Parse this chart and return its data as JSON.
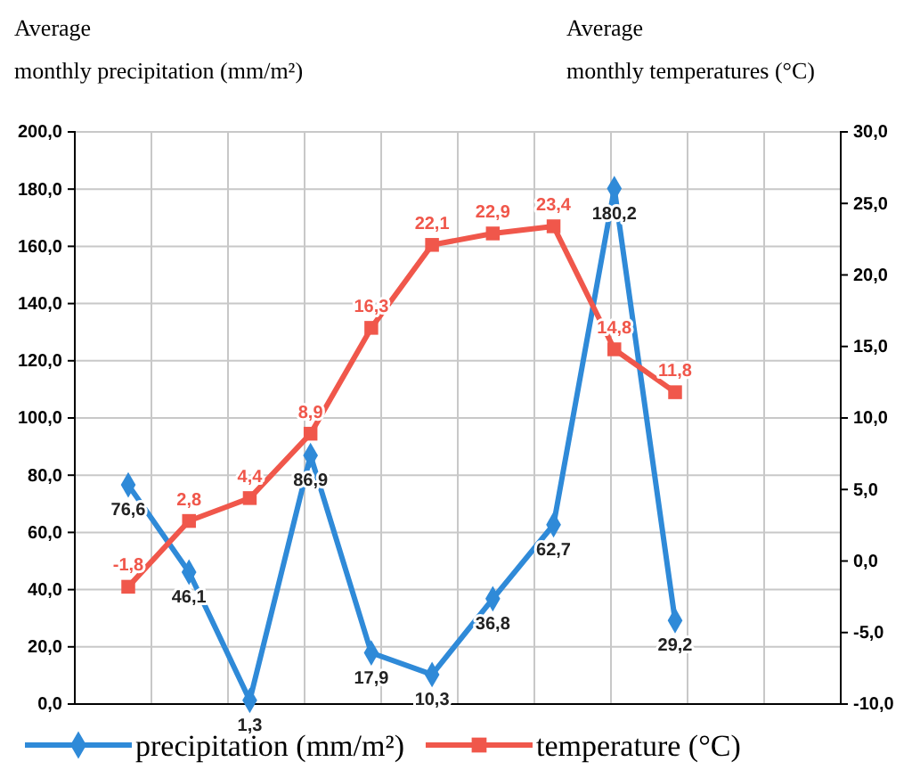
{
  "chart_data": {
    "type": "line",
    "ylabel": "Average\nmonthly precipitation (mm/m²)",
    "y2label": "Average\nmonthly temperatures (°C)",
    "categories": [
      null,
      null,
      null,
      null,
      null,
      null,
      null,
      null,
      null,
      null
    ],
    "series": [
      {
        "name": "precipitation (mm/m²)",
        "color": "#2f8ad8",
        "marker": "diamond",
        "values": [
          76.6,
          46.1,
          1.3,
          86.9,
          17.9,
          10.3,
          36.8,
          62.7,
          180.2,
          29.2
        ],
        "value_labels": [
          "76,6",
          "46,1",
          "1,3",
          "86,9",
          "17,9",
          "10,3",
          "36,8",
          "62,7",
          "180,2",
          "29,2"
        ]
      },
      {
        "name": "temperature (°C)",
        "color": "#f0574b",
        "marker": "square",
        "axis": "y2",
        "values": [
          -1.8,
          2.8,
          4.4,
          8.9,
          16.3,
          22.1,
          22.9,
          23.4,
          14.8,
          11.8
        ],
        "value_labels": [
          "-1,8",
          "2,8",
          "4,4",
          "8,9",
          "16,3",
          "22,1",
          "22,9",
          "23,4",
          "14,8",
          "11,8"
        ]
      }
    ],
    "ylim": [
      0,
      200
    ],
    "yticks": [
      {
        "value": 0,
        "label": "0,0"
      },
      {
        "value": 20,
        "label": "20,0"
      },
      {
        "value": 40,
        "label": "40,0"
      },
      {
        "value": 60,
        "label": "60,0"
      },
      {
        "value": 80,
        "label": "80,0"
      },
      {
        "value": 100,
        "label": "100,0"
      },
      {
        "value": 120,
        "label": "120,0"
      },
      {
        "value": 140,
        "label": "140,0"
      },
      {
        "value": 160,
        "label": "160,0"
      },
      {
        "value": 180,
        "label": "180,0"
      },
      {
        "value": 200,
        "label": "200,0"
      }
    ],
    "y2lim": [
      -10,
      30
    ],
    "y2ticks": [
      {
        "value": -10,
        "label": "-10,0"
      },
      {
        "value": -5,
        "label": "-5,0"
      },
      {
        "value": 0,
        "label": "0,0"
      },
      {
        "value": 5,
        "label": "5,0"
      },
      {
        "value": 10,
        "label": "10,0"
      },
      {
        "value": 15,
        "label": "15,0"
      },
      {
        "value": 20,
        "label": "20,0"
      },
      {
        "value": 25,
        "label": "25,0"
      },
      {
        "value": 30,
        "label": "30,0"
      }
    ],
    "grid": true,
    "legend": "bottom"
  }
}
